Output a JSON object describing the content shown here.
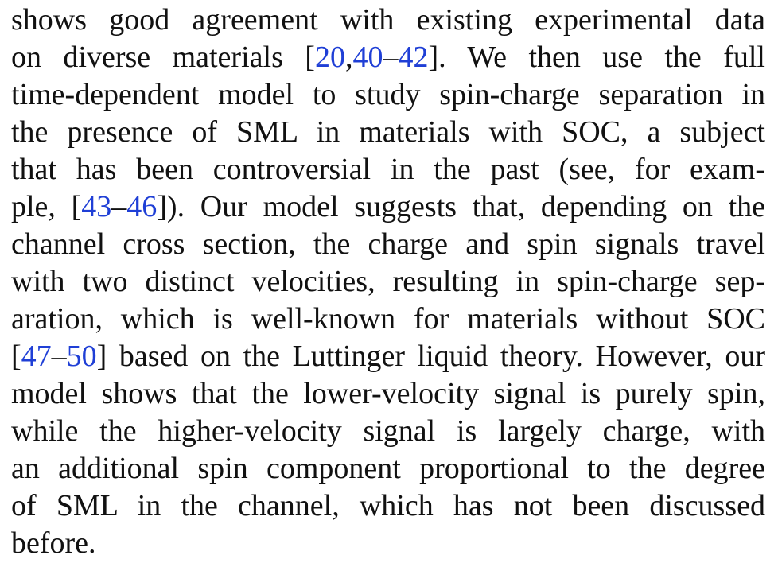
{
  "lines": [
    {
      "segments": [
        {
          "text": "shows good agreement with existing experimental data"
        }
      ]
    },
    {
      "segments": [
        {
          "text": "on diverse materials ["
        },
        {
          "text": "20",
          "ref": true
        },
        {
          "text": ","
        },
        {
          "text": "40",
          "ref": true
        },
        {
          "text": "–"
        },
        {
          "text": "42",
          "ref": true
        },
        {
          "text": "]. We then use the full"
        }
      ]
    },
    {
      "segments": [
        {
          "text": "time-dependent model to study spin-charge separation in"
        }
      ]
    },
    {
      "segments": [
        {
          "text": "the presence of SML in materials with SOC, a subject"
        }
      ]
    },
    {
      "segments": [
        {
          "text": "that has been controversial in the past (see, for exam-"
        }
      ]
    },
    {
      "segments": [
        {
          "text": "ple, ["
        },
        {
          "text": "43",
          "ref": true
        },
        {
          "text": "–"
        },
        {
          "text": "46",
          "ref": true
        },
        {
          "text": "]). Our model suggests that, depending on the"
        }
      ]
    },
    {
      "segments": [
        {
          "text": "channel cross section, the charge and spin signals travel"
        }
      ]
    },
    {
      "segments": [
        {
          "text": "with two distinct velocities, resulting in spin-charge sep-"
        }
      ]
    },
    {
      "segments": [
        {
          "text": "aration, which is well-known for materials without SOC"
        }
      ]
    },
    {
      "segments": [
        {
          "text": "["
        },
        {
          "text": "47",
          "ref": true
        },
        {
          "text": "–"
        },
        {
          "text": "50",
          "ref": true
        },
        {
          "text": "] based on the Luttinger liquid theory. However, our"
        }
      ]
    },
    {
      "segments": [
        {
          "text": "model shows that the lower-velocity signal is purely spin,"
        }
      ]
    },
    {
      "segments": [
        {
          "text": "while the higher-velocity signal is largely charge, with"
        }
      ]
    },
    {
      "segments": [
        {
          "text": "an additional spin component proportional to the degree"
        }
      ]
    },
    {
      "segments": [
        {
          "text": "of SML in the channel, which has not been discussed"
        }
      ]
    },
    {
      "segments": [
        {
          "text": "before."
        }
      ]
    }
  ],
  "colors": {
    "text": "#111111",
    "citation_link": "#1f3fd6"
  }
}
